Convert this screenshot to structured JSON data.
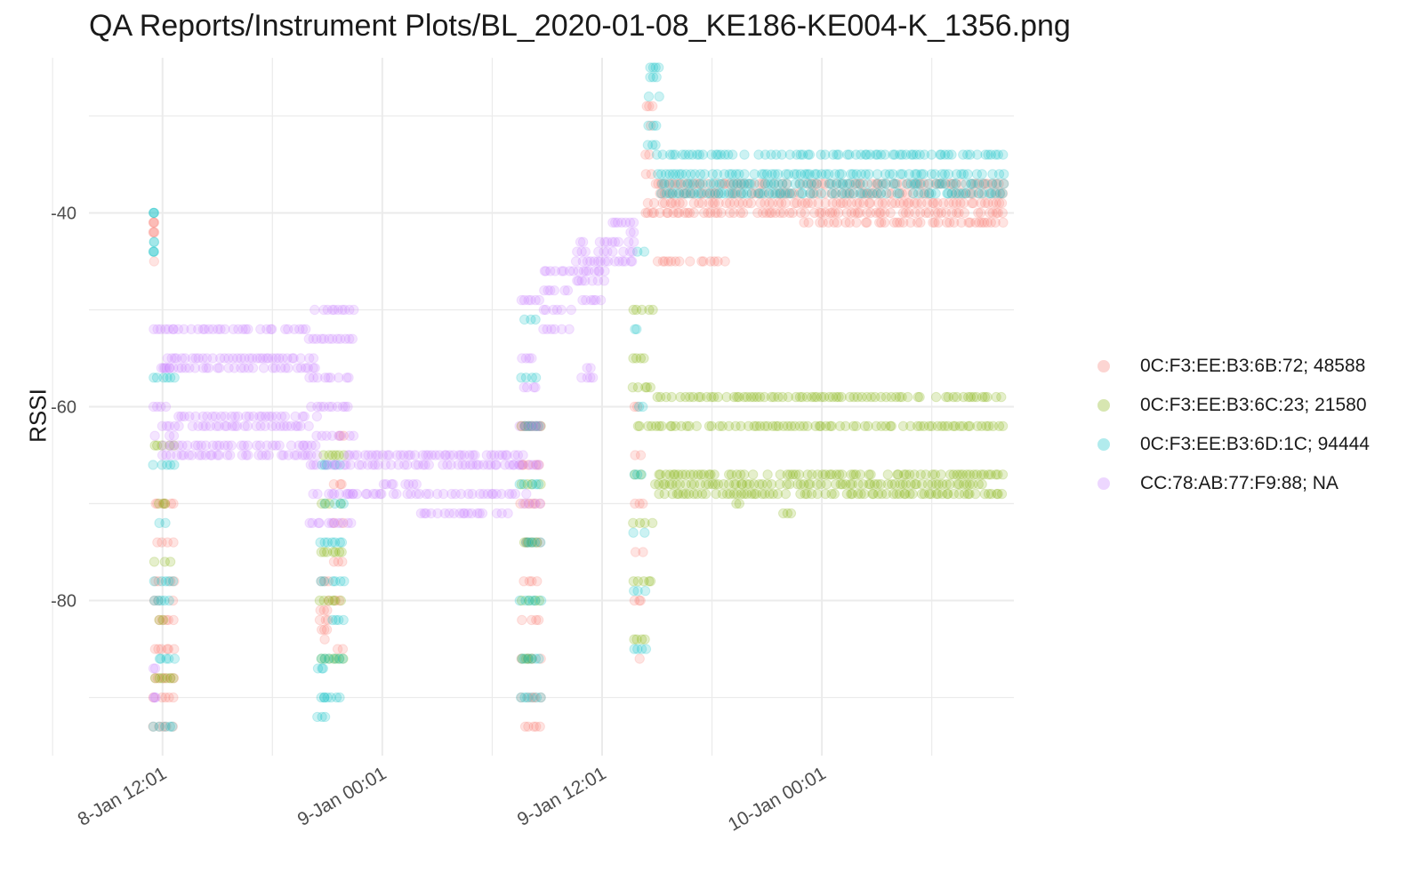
{
  "chart_data": {
    "type": "scatter",
    "title": "QA Reports/Instrument Plots/BL_2020-01-08_KE186-KE004-K_1356.png",
    "ylabel": "RSSI",
    "xlabel": "",
    "ylim": [
      -96,
      -24
    ],
    "xlim": [
      "2020-01-08 08:00",
      "2020-01-10 10:30"
    ],
    "y_ticks": [
      -80,
      -60,
      -40
    ],
    "x_ticks": [
      {
        "value": "2020-01-08 12:01",
        "label": "8-Jan 12:01"
      },
      {
        "value": "2020-01-09 00:01",
        "label": "9-Jan 00:01"
      },
      {
        "value": "2020-01-09 12:01",
        "label": "9-Jan 12:01"
      },
      {
        "value": "2020-01-10 00:01",
        "label": "10-Jan 00:01"
      }
    ],
    "grid": true,
    "legend_position": "right",
    "point_alpha": 0.2,
    "series": [
      {
        "name": "0C:F3:EE:B3:6B:72; 48588",
        "color": "#F8766D",
        "segments": [
          {
            "x0": "2020-01-08 11:30",
            "x1": "2020-01-08 11:35",
            "yvals": [
              -41,
              -42,
              -45
            ]
          },
          {
            "x0": "2020-01-08 11:30",
            "x1": "2020-01-08 12:45",
            "yvals": [
              -70,
              -74,
              -78,
              -80,
              -82,
              -85,
              -88,
              -90,
              -93
            ]
          },
          {
            "x0": "2020-01-08 20:35",
            "x1": "2020-01-08 21:10",
            "yvals": [
              -78,
              -80,
              -81,
              -82,
              -83,
              -84
            ]
          },
          {
            "x0": "2020-01-08 21:20",
            "x1": "2020-01-08 22:00",
            "yvals": [
              -63,
              -68,
              -72,
              -76,
              -80,
              -85
            ]
          },
          {
            "x0": "2020-01-09 07:30",
            "x1": "2020-01-09 08:45",
            "yvals": [
              -62,
              -66,
              -70,
              -74,
              -78,
              -82,
              -86,
              -90,
              -93
            ]
          },
          {
            "x0": "2020-01-09 13:40",
            "x1": "2020-01-09 14:20",
            "yvals": [
              -60,
              -65,
              -70,
              -75,
              -80,
              -86
            ]
          },
          {
            "x0": "2020-01-09 14:20",
            "x1": "2020-01-09 14:50",
            "yvals": [
              -29,
              -31,
              -34,
              -36,
              -39,
              -40
            ]
          },
          {
            "x0": "2020-01-09 14:50",
            "x1": "2020-01-09 18:50",
            "yvals": [
              -45
            ]
          },
          {
            "x0": "2020-01-09 14:50",
            "x1": "2020-01-10 10:00",
            "yvals": [
              -37,
              -38,
              -39,
              -40
            ]
          },
          {
            "x0": "2020-01-09 23:00",
            "x1": "2020-01-10 10:00",
            "yvals": [
              -41
            ]
          }
        ]
      },
      {
        "name": "0C:F3:EE:B3:6C:23; 21580",
        "color": "#7CAE00",
        "segments": [
          {
            "x0": "2020-01-08 11:30",
            "x1": "2020-01-08 12:45",
            "yvals": [
              -64,
              -70,
              -76,
              -82,
              -88
            ]
          },
          {
            "x0": "2020-01-08 20:35",
            "x1": "2020-01-08 22:00",
            "yvals": [
              -65,
              -70,
              -75,
              -80,
              -86
            ]
          },
          {
            "x0": "2020-01-09 07:30",
            "x1": "2020-01-09 08:45",
            "yvals": [
              -62,
              -68,
              -74,
              -80,
              -86
            ]
          },
          {
            "x0": "2020-01-09 13:40",
            "x1": "2020-01-09 14:50",
            "yvals": [
              -50,
              -55,
              -58,
              -62,
              -67,
              -72,
              -78,
              -84
            ]
          },
          {
            "x0": "2020-01-09 14:50",
            "x1": "2020-01-10 10:00",
            "yvals": [
              -62,
              -68
            ]
          },
          {
            "x0": "2020-01-09 15:00",
            "x1": "2020-01-10 10:00",
            "yvals": [
              -59,
              -67,
              -69
            ]
          },
          {
            "x0": "2020-01-09 19:00",
            "x1": "2020-01-09 19:40",
            "yvals": [
              -70
            ]
          },
          {
            "x0": "2020-01-09 21:50",
            "x1": "2020-01-09 22:30",
            "yvals": [
              -71
            ]
          }
        ]
      },
      {
        "name": "0C:F3:EE:B3:6D:1C; 94444",
        "color": "#00BFC4",
        "segments": [
          {
            "x0": "2020-01-08 11:30",
            "x1": "2020-01-08 11:35",
            "yvals": [
              -40,
              -43,
              -44
            ]
          },
          {
            "x0": "2020-01-08 11:30",
            "x1": "2020-01-08 12:45",
            "yvals": [
              -57,
              -66,
              -72,
              -78,
              -80,
              -86,
              -93
            ]
          },
          {
            "x0": "2020-01-08 20:20",
            "x1": "2020-01-08 21:00",
            "yvals": [
              -87,
              -90,
              -92
            ]
          },
          {
            "x0": "2020-01-08 20:35",
            "x1": "2020-01-08 22:00",
            "yvals": [
              -66,
              -70,
              -74,
              -78,
              -82,
              -86,
              -90
            ]
          },
          {
            "x0": "2020-01-09 07:30",
            "x1": "2020-01-09 08:45",
            "yvals": [
              -51,
              -57,
              -62,
              -68,
              -74,
              -80,
              -86,
              -90
            ]
          },
          {
            "x0": "2020-01-09 13:40",
            "x1": "2020-01-09 14:30",
            "yvals": [
              -44,
              -52,
              -60,
              -67,
              -73,
              -79,
              -85
            ]
          },
          {
            "x0": "2020-01-09 14:30",
            "x1": "2020-01-09 15:15",
            "yvals": [
              -25,
              -26,
              -28,
              -31,
              -33
            ]
          },
          {
            "x0": "2020-01-09 15:00",
            "x1": "2020-01-10 10:00",
            "yvals": [
              -34,
              -36,
              -37,
              -38
            ]
          }
        ]
      },
      {
        "name": "CC:78:AB:77:F9:88; NA",
        "color": "#C77CFF",
        "segments": [
          {
            "x0": "2020-01-08 11:30",
            "x1": "2020-01-08 12:45",
            "yvals": [
              -52,
              -56,
              -60,
              -63
            ]
          },
          {
            "x0": "2020-01-08 11:30",
            "x1": "2020-01-08 11:40",
            "yvals": [
              -87,
              -90
            ]
          },
          {
            "x0": "2020-01-08 12:00",
            "x1": "2020-01-08 20:30",
            "yvals": [
              -52,
              -55,
              -56,
              -61,
              -62,
              -64,
              -65
            ]
          },
          {
            "x0": "2020-01-08 20:00",
            "x1": "2020-01-08 22:30",
            "yvals": [
              -50,
              -53,
              -57,
              -60,
              -63,
              -66,
              -69,
              -72
            ]
          },
          {
            "x0": "2020-01-08 22:00",
            "x1": "2020-01-09 08:00",
            "yvals": [
              -65,
              -66,
              -69
            ]
          },
          {
            "x0": "2020-01-09 00:00",
            "x1": "2020-01-09 02:00",
            "yvals": [
              -68
            ]
          },
          {
            "x0": "2020-01-09 02:00",
            "x1": "2020-01-09 07:00",
            "yvals": [
              -71
            ]
          },
          {
            "x0": "2020-01-09 07:30",
            "x1": "2020-01-09 08:45",
            "yvals": [
              -49,
              -55,
              -58,
              -62,
              -66,
              -70
            ]
          },
          {
            "x0": "2020-01-09 08:45",
            "x1": "2020-01-09 10:30",
            "yvals": [
              -46,
              -48,
              -50,
              -52
            ]
          },
          {
            "x0": "2020-01-09 10:30",
            "x1": "2020-01-09 12:15",
            "yvals": [
              -43,
              -44,
              -45,
              -46,
              -47,
              -49
            ]
          },
          {
            "x0": "2020-01-09 12:15",
            "x1": "2020-01-09 13:50",
            "yvals": [
              -41,
              -42,
              -43,
              -44,
              -45
            ]
          },
          {
            "x0": "2020-01-09 10:50",
            "x1": "2020-01-09 11:40",
            "yvals": [
              -56,
              -57
            ]
          }
        ]
      }
    ]
  }
}
